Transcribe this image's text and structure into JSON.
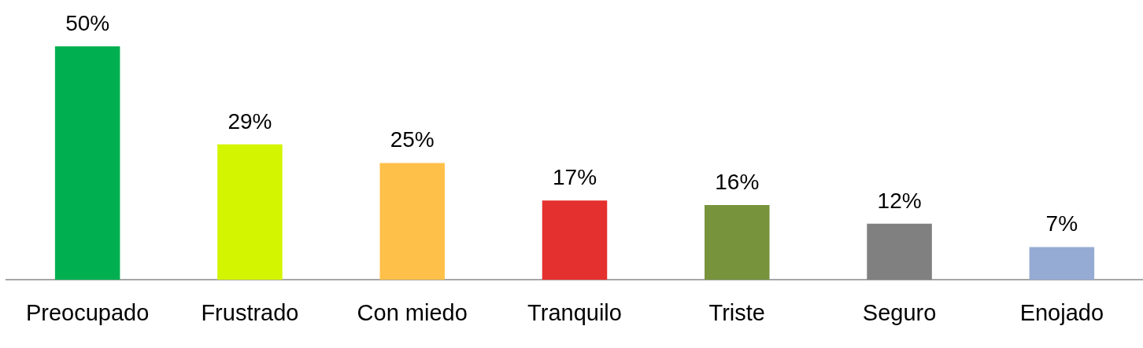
{
  "chart_data": {
    "type": "bar",
    "categories": [
      "Preocupado",
      "Frustrado",
      "Con miedo",
      "Tranquilo",
      "Triste",
      "Seguro",
      "Enojado"
    ],
    "values": [
      50,
      29,
      25,
      17,
      16,
      12,
      7
    ],
    "colors": [
      "#00b050",
      "#d4f500",
      "#ffc04a",
      "#e53030",
      "#77933c",
      "#808080",
      "#95abd4"
    ],
    "value_labels": [
      "50%",
      "29%",
      "25%",
      "17%",
      "16%",
      "12%",
      "7%"
    ],
    "tick_labels": "x",
    "grid": false,
    "legend": false
  }
}
